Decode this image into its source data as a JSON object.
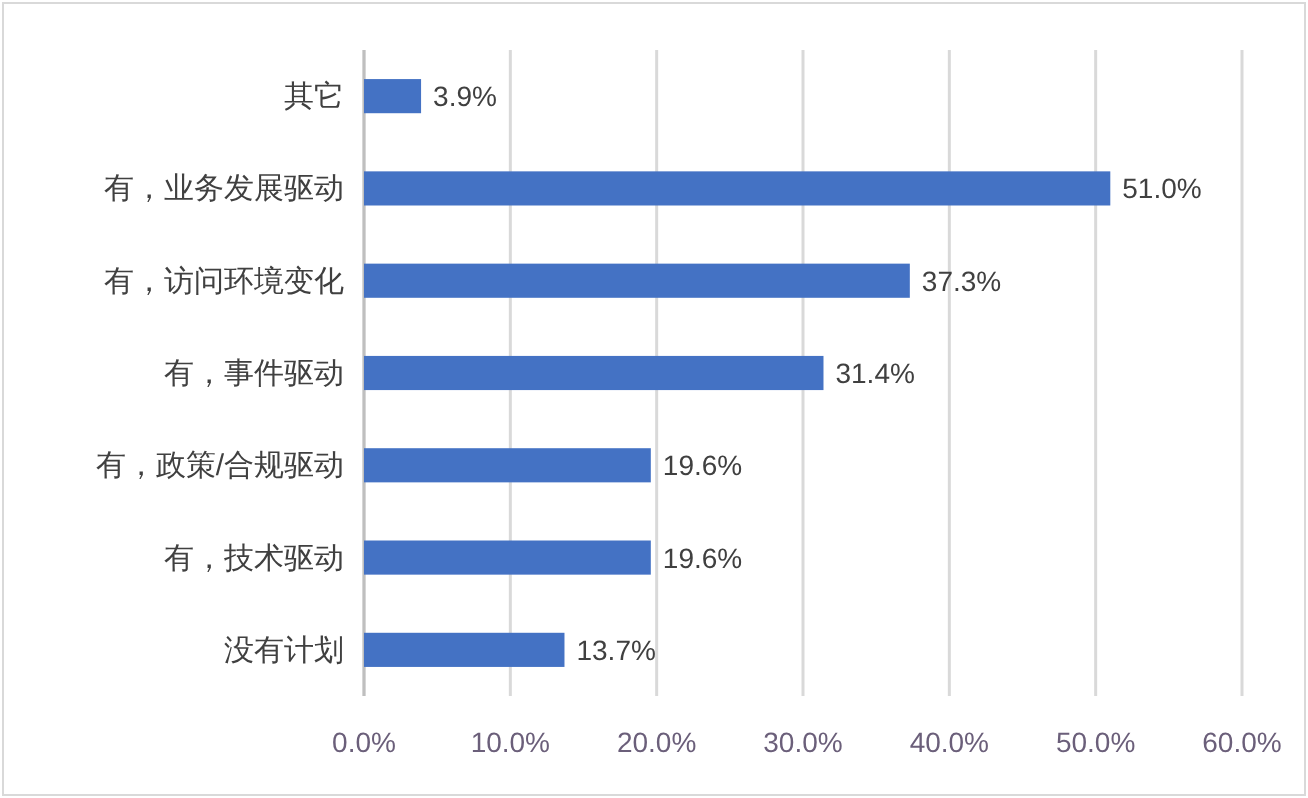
{
  "chart_data": {
    "type": "bar",
    "orientation": "horizontal",
    "color": "#4472c4",
    "grid": "x",
    "categories": [
      "其它",
      "有，业务发展驱动",
      "有，访问环境变化",
      "有，事件驱动",
      "有，政策/合规驱动",
      "有，技术驱动",
      "没有计划"
    ],
    "values": [
      3.9,
      51.0,
      37.3,
      31.4,
      19.6,
      19.6,
      13.7
    ],
    "value_labels": [
      "3.9%",
      "51.0%",
      "37.3%",
      "31.4%",
      "19.6%",
      "19.6%",
      "13.7%"
    ],
    "xlim": [
      0,
      60
    ],
    "xticks": [
      {
        "value": 0,
        "label": "0.0%"
      },
      {
        "value": 10,
        "label": "10.0%"
      },
      {
        "value": 20,
        "label": "20.0%"
      },
      {
        "value": 30,
        "label": "30.0%"
      },
      {
        "value": 40,
        "label": "40.0%"
      },
      {
        "value": 50,
        "label": "50.0%"
      },
      {
        "value": 60,
        "label": "60.0%"
      }
    ]
  }
}
